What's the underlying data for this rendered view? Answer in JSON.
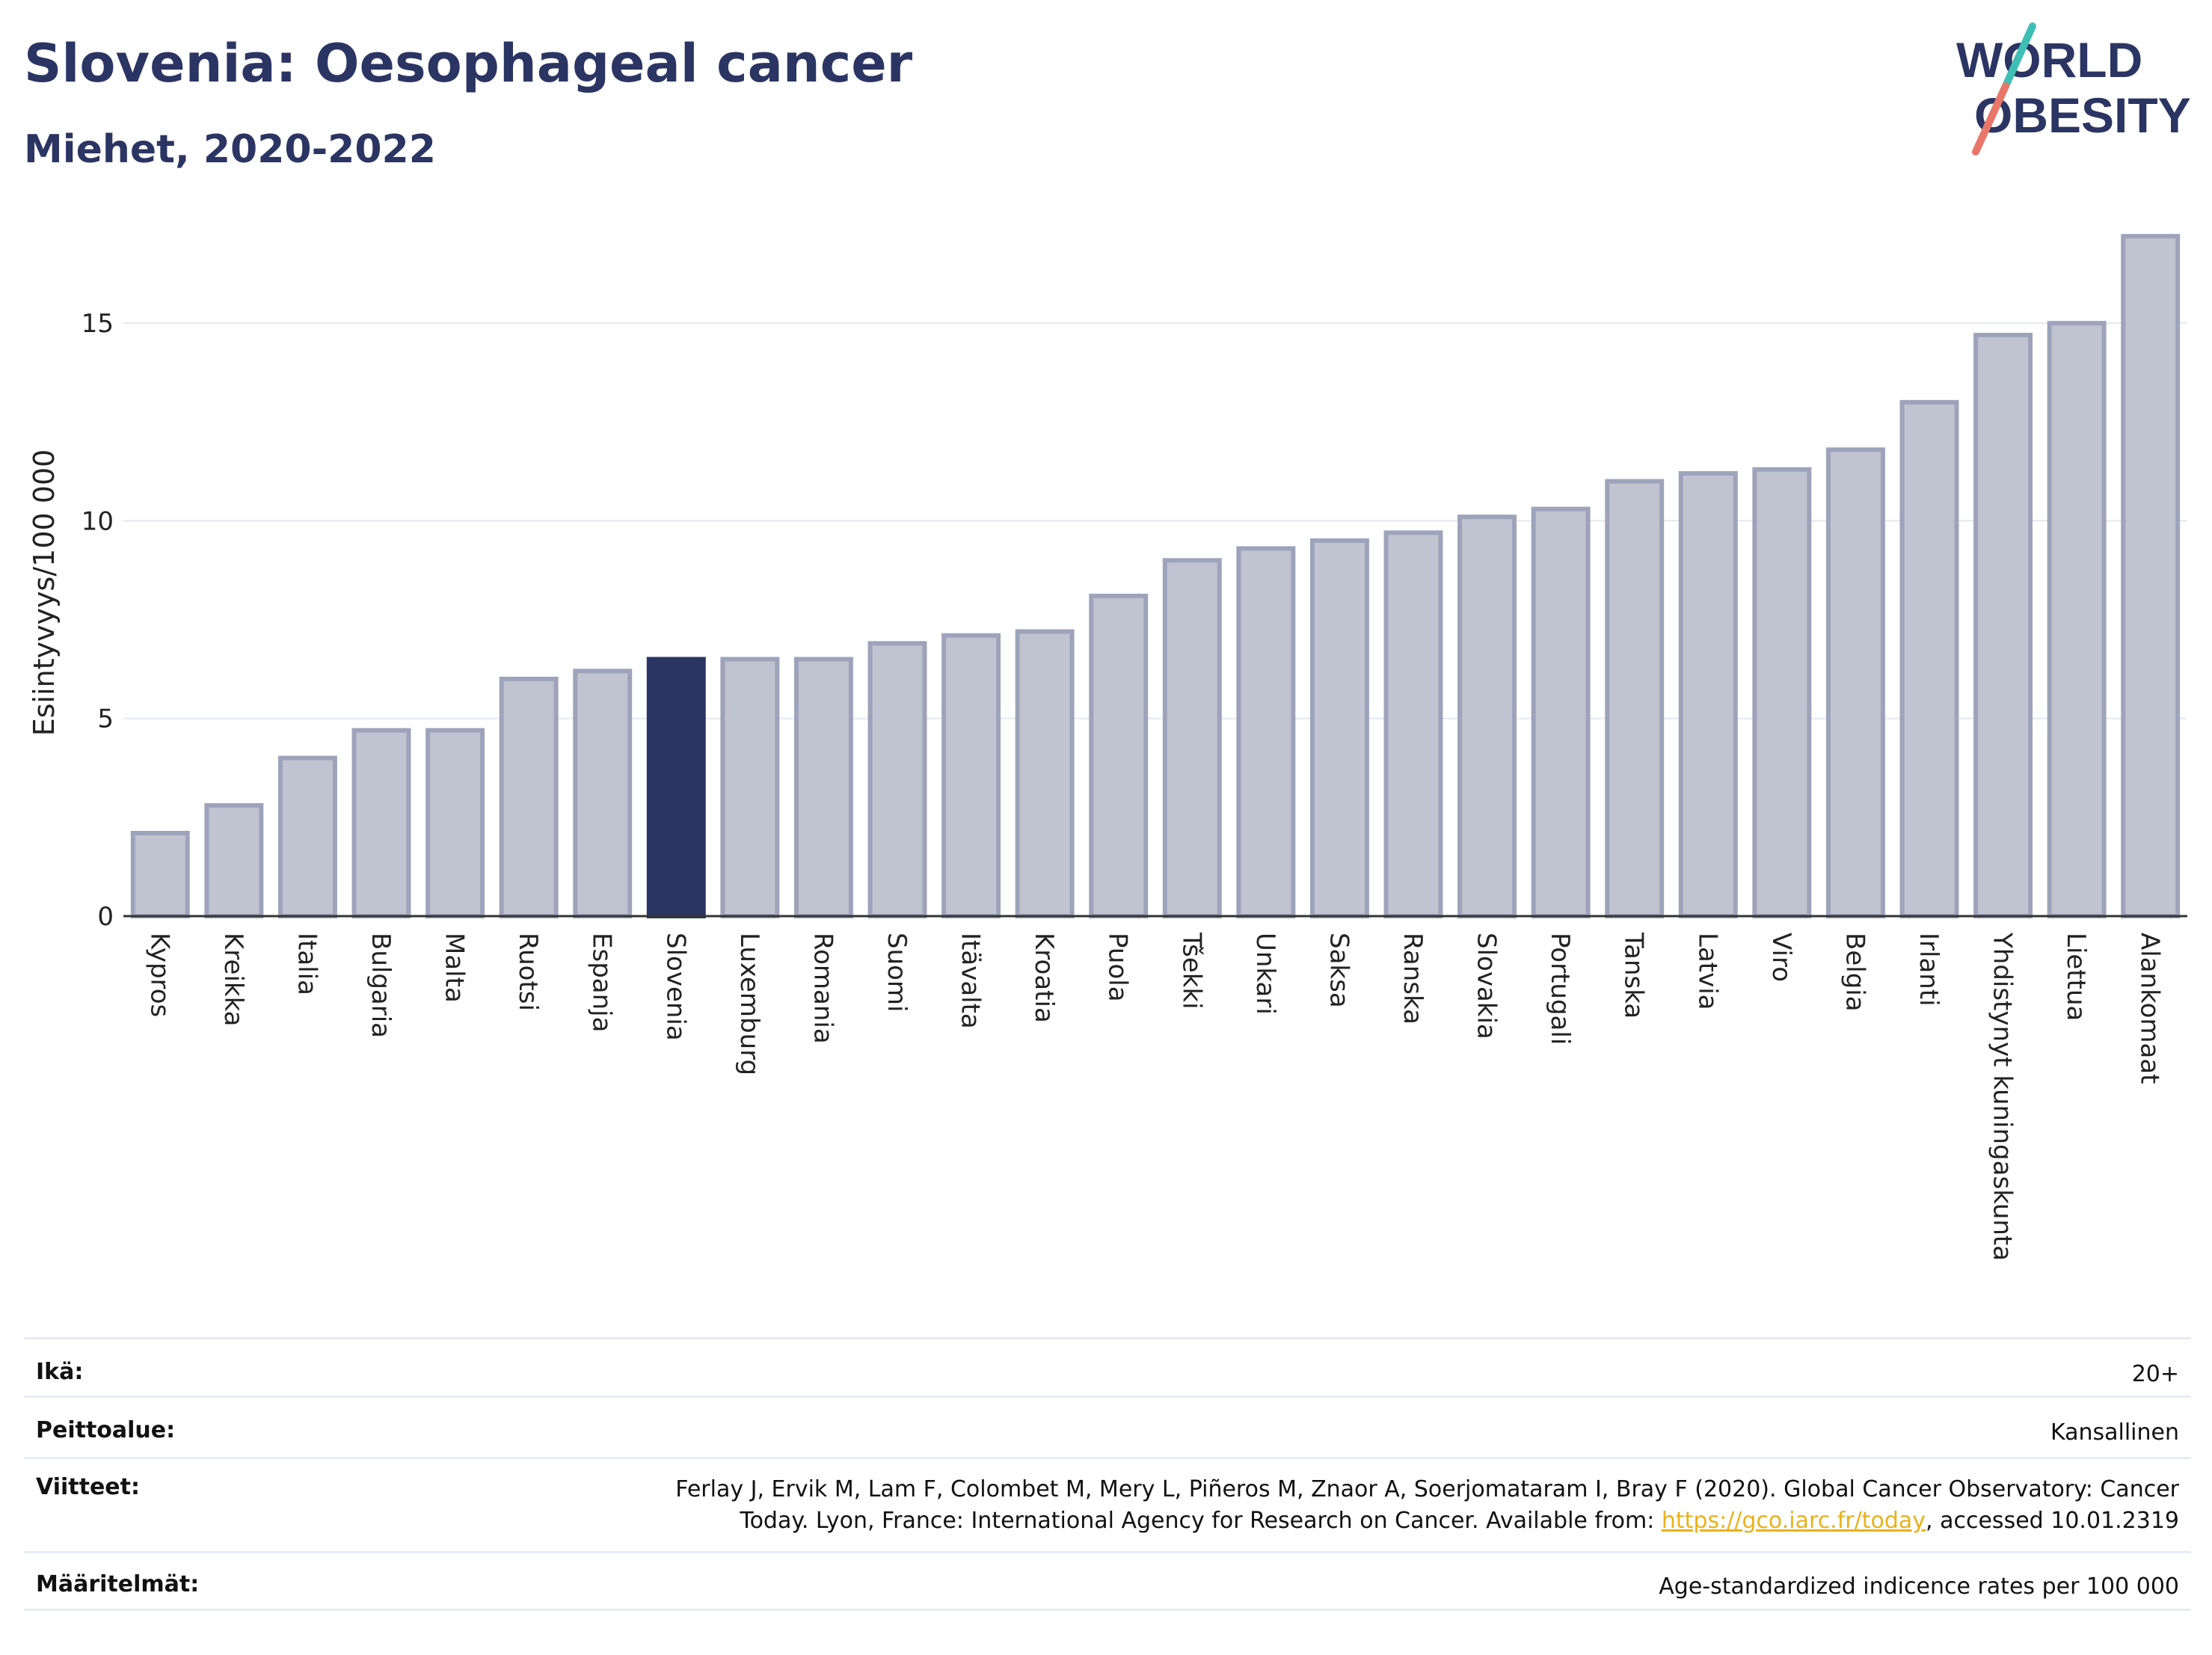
{
  "header": {
    "title": "Slovenia: Oesophageal cancer",
    "subtitle": "Miehet, 2020-2022"
  },
  "logo": {
    "line1": "WORLD",
    "line2": "OBESITY"
  },
  "colors": {
    "bar": "#c0c3d0",
    "bar_border": "#9ea3bb",
    "highlight": "#2b3563",
    "grid": "#e6e8ef",
    "text": "#2b3563",
    "link": "#e8b21c"
  },
  "chart_data": {
    "type": "bar",
    "ylabel": "Esiintyvyys/100 000",
    "ylim": [
      0,
      17.5
    ],
    "yticks": [
      0,
      5,
      10,
      15
    ],
    "grid": true,
    "highlight": "Slovenia",
    "categories": [
      "Kypros",
      "Kreikka",
      "Italia",
      "Bulgaria",
      "Malta",
      "Ruotsi",
      "Espanja",
      "Slovenia",
      "Luxemburg",
      "Romania",
      "Suomi",
      "Itävalta",
      "Kroatia",
      "Puola",
      "Tšekki",
      "Unkari",
      "Saksa",
      "Ranska",
      "Slovakia",
      "Portugali",
      "Tanska",
      "Latvia",
      "Viro",
      "Belgia",
      "Irlanti",
      "Yhdistynyt kuningaskunta",
      "Liettua",
      "Alankomaat"
    ],
    "values": [
      2.1,
      2.8,
      4.0,
      4.7,
      4.7,
      6.0,
      6.2,
      6.5,
      6.5,
      6.5,
      6.9,
      7.1,
      7.2,
      8.1,
      9.0,
      9.3,
      9.5,
      9.7,
      10.1,
      10.3,
      11.0,
      11.2,
      11.3,
      11.8,
      13.0,
      14.7,
      15.0,
      17.2
    ]
  },
  "meta": {
    "age_label": "Ikä:",
    "age_value": "20+",
    "coverage_label": "Peittoalue:",
    "coverage_value": "Kansallinen",
    "refs_label": "Viitteet:",
    "refs_line1": "Ferlay J, Ervik M, Lam F, Colombet M, Mery L, Piñeros M, Znaor A, Soerjomataram I, Bray F (2020). Global Cancer Observatory: Cancer",
    "refs_line2_pre": "Today. Lyon, France: International Agency for Research on Cancer. Available from: ",
    "refs_link": "https://gco.iarc.fr/today",
    "refs_line2_post": ", accessed 10.01.2319",
    "defs_label": "Määritelmät:",
    "defs_value": "Age-standardized indicence rates per 100 000"
  }
}
